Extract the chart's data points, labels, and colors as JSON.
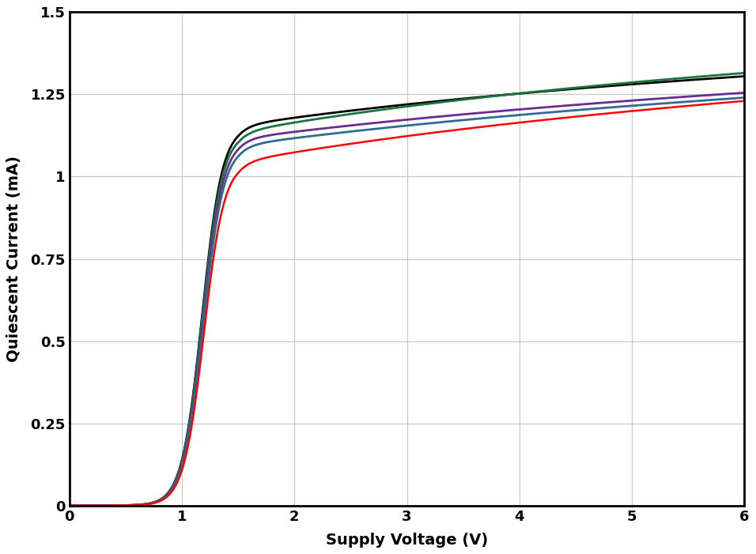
{
  "xlabel": "Supply Voltage (V)",
  "ylabel": "Quiescent Current (mA)",
  "xlim": [
    0,
    6
  ],
  "ylim": [
    0,
    1.5
  ],
  "xticks": [
    0,
    1,
    2,
    3,
    4,
    5,
    6
  ],
  "yticks": [
    0,
    0.25,
    0.5,
    0.75,
    1.0,
    1.25,
    1.5
  ],
  "grid_color": "#c8c8c8",
  "background_color": "#ffffff",
  "curves": [
    {
      "color": "#000000",
      "linewidth": 2.0,
      "v_half": 1.18,
      "k": 0.09,
      "i_low": 1.155,
      "i_high": 1.305,
      "slow_k": 0.28
    },
    {
      "color": "#1b7340",
      "linewidth": 2.0,
      "v_half": 1.18,
      "k": 0.09,
      "i_low": 1.135,
      "i_high": 1.315,
      "slow_k": 0.3
    },
    {
      "color": "#6b2c91",
      "linewidth": 2.0,
      "v_half": 1.185,
      "k": 0.09,
      "i_low": 1.115,
      "i_high": 1.255,
      "slow_k": 0.22
    },
    {
      "color": "#2e6d8e",
      "linewidth": 2.0,
      "v_half": 1.19,
      "k": 0.09,
      "i_low": 1.095,
      "i_high": 1.24,
      "slow_k": 0.22
    },
    {
      "color": "#ff0000",
      "linewidth": 1.8,
      "v_half": 1.195,
      "k": 0.09,
      "i_low": 1.045,
      "i_high": 1.23,
      "slow_k": 0.25
    }
  ]
}
